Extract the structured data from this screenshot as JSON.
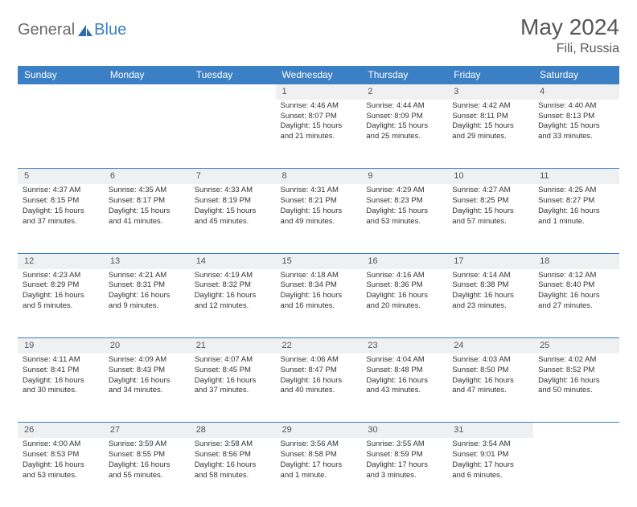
{
  "logo": {
    "general": "General",
    "blue": "Blue"
  },
  "title": "May 2024",
  "location": "Fili, Russia",
  "colors": {
    "header_bg": "#3b7fc4",
    "header_fg": "#ffffff",
    "daynum_bg": "#eef0f2",
    "border": "#3b7fc4",
    "text": "#333333",
    "logo_gray": "#6a6a6a",
    "logo_blue": "#3b7fc4"
  },
  "day_headers": [
    "Sunday",
    "Monday",
    "Tuesday",
    "Wednesday",
    "Thursday",
    "Friday",
    "Saturday"
  ],
  "weeks": [
    {
      "nums": [
        "",
        "",
        "",
        "1",
        "2",
        "3",
        "4"
      ],
      "cells": [
        null,
        null,
        null,
        {
          "sunrise": "4:46 AM",
          "sunset": "8:07 PM",
          "daylight": "15 hours and 21 minutes."
        },
        {
          "sunrise": "4:44 AM",
          "sunset": "8:09 PM",
          "daylight": "15 hours and 25 minutes."
        },
        {
          "sunrise": "4:42 AM",
          "sunset": "8:11 PM",
          "daylight": "15 hours and 29 minutes."
        },
        {
          "sunrise": "4:40 AM",
          "sunset": "8:13 PM",
          "daylight": "15 hours and 33 minutes."
        }
      ]
    },
    {
      "nums": [
        "5",
        "6",
        "7",
        "8",
        "9",
        "10",
        "11"
      ],
      "cells": [
        {
          "sunrise": "4:37 AM",
          "sunset": "8:15 PM",
          "daylight": "15 hours and 37 minutes."
        },
        {
          "sunrise": "4:35 AM",
          "sunset": "8:17 PM",
          "daylight": "15 hours and 41 minutes."
        },
        {
          "sunrise": "4:33 AM",
          "sunset": "8:19 PM",
          "daylight": "15 hours and 45 minutes."
        },
        {
          "sunrise": "4:31 AM",
          "sunset": "8:21 PM",
          "daylight": "15 hours and 49 minutes."
        },
        {
          "sunrise": "4:29 AM",
          "sunset": "8:23 PM",
          "daylight": "15 hours and 53 minutes."
        },
        {
          "sunrise": "4:27 AM",
          "sunset": "8:25 PM",
          "daylight": "15 hours and 57 minutes."
        },
        {
          "sunrise": "4:25 AM",
          "sunset": "8:27 PM",
          "daylight": "16 hours and 1 minute."
        }
      ]
    },
    {
      "nums": [
        "12",
        "13",
        "14",
        "15",
        "16",
        "17",
        "18"
      ],
      "cells": [
        {
          "sunrise": "4:23 AM",
          "sunset": "8:29 PM",
          "daylight": "16 hours and 5 minutes."
        },
        {
          "sunrise": "4:21 AM",
          "sunset": "8:31 PM",
          "daylight": "16 hours and 9 minutes."
        },
        {
          "sunrise": "4:19 AM",
          "sunset": "8:32 PM",
          "daylight": "16 hours and 12 minutes."
        },
        {
          "sunrise": "4:18 AM",
          "sunset": "8:34 PM",
          "daylight": "16 hours and 16 minutes."
        },
        {
          "sunrise": "4:16 AM",
          "sunset": "8:36 PM",
          "daylight": "16 hours and 20 minutes."
        },
        {
          "sunrise": "4:14 AM",
          "sunset": "8:38 PM",
          "daylight": "16 hours and 23 minutes."
        },
        {
          "sunrise": "4:12 AM",
          "sunset": "8:40 PM",
          "daylight": "16 hours and 27 minutes."
        }
      ]
    },
    {
      "nums": [
        "19",
        "20",
        "21",
        "22",
        "23",
        "24",
        "25"
      ],
      "cells": [
        {
          "sunrise": "4:11 AM",
          "sunset": "8:41 PM",
          "daylight": "16 hours and 30 minutes."
        },
        {
          "sunrise": "4:09 AM",
          "sunset": "8:43 PM",
          "daylight": "16 hours and 34 minutes."
        },
        {
          "sunrise": "4:07 AM",
          "sunset": "8:45 PM",
          "daylight": "16 hours and 37 minutes."
        },
        {
          "sunrise": "4:06 AM",
          "sunset": "8:47 PM",
          "daylight": "16 hours and 40 minutes."
        },
        {
          "sunrise": "4:04 AM",
          "sunset": "8:48 PM",
          "daylight": "16 hours and 43 minutes."
        },
        {
          "sunrise": "4:03 AM",
          "sunset": "8:50 PM",
          "daylight": "16 hours and 47 minutes."
        },
        {
          "sunrise": "4:02 AM",
          "sunset": "8:52 PM",
          "daylight": "16 hours and 50 minutes."
        }
      ]
    },
    {
      "nums": [
        "26",
        "27",
        "28",
        "29",
        "30",
        "31",
        ""
      ],
      "cells": [
        {
          "sunrise": "4:00 AM",
          "sunset": "8:53 PM",
          "daylight": "16 hours and 53 minutes."
        },
        {
          "sunrise": "3:59 AM",
          "sunset": "8:55 PM",
          "daylight": "16 hours and 55 minutes."
        },
        {
          "sunrise": "3:58 AM",
          "sunset": "8:56 PM",
          "daylight": "16 hours and 58 minutes."
        },
        {
          "sunrise": "3:56 AM",
          "sunset": "8:58 PM",
          "daylight": "17 hours and 1 minute."
        },
        {
          "sunrise": "3:55 AM",
          "sunset": "8:59 PM",
          "daylight": "17 hours and 3 minutes."
        },
        {
          "sunrise": "3:54 AM",
          "sunset": "9:01 PM",
          "daylight": "17 hours and 6 minutes."
        },
        null
      ]
    }
  ],
  "labels": {
    "sunrise": "Sunrise:",
    "sunset": "Sunset:",
    "daylight": "Daylight:"
  }
}
